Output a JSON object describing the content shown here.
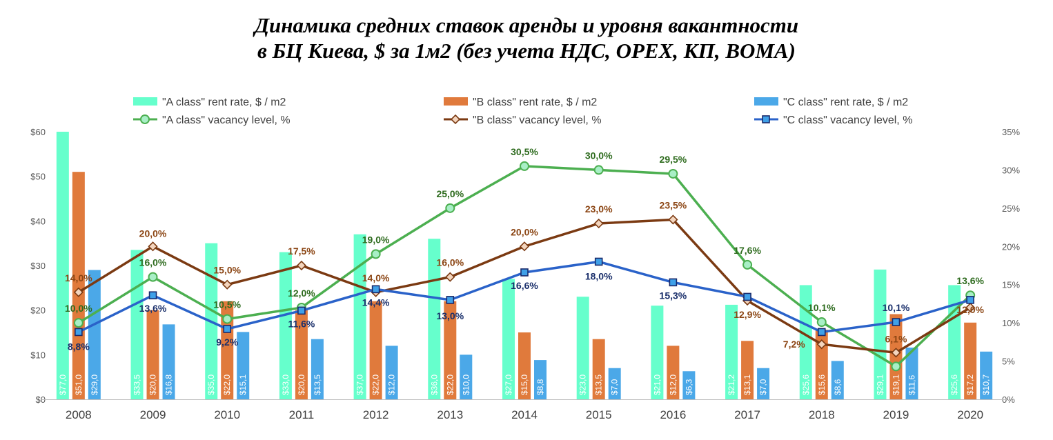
{
  "title": {
    "line1": "Динамика средних ставок аренды и уровня вакантности",
    "line2": "в БЦ Киева, $ за 1м2 (без учета НДС, OPEX, КП, BOMA)"
  },
  "chart_data": {
    "type": "bar",
    "categories": [
      "2008",
      "2009",
      "2010",
      "2011",
      "2012",
      "2013",
      "2014",
      "2015",
      "2016",
      "2017",
      "2018",
      "2019",
      "2020"
    ],
    "y_left": {
      "min": 0,
      "max": 60,
      "step": 10,
      "tick_labels": [
        "$0",
        "$10",
        "$20",
        "$30",
        "$40",
        "$50",
        "$60"
      ]
    },
    "y_right": {
      "min": 0,
      "max": 35,
      "step": 5,
      "tick_labels": [
        "0%",
        "5%",
        "10%",
        "15%",
        "20%",
        "25%",
        "30%",
        "35%"
      ]
    },
    "grid": false,
    "legend_position": "top",
    "bar_series": [
      {
        "name": "\"A class\" rent rate, $ / m2",
        "color": "#66FFCC",
        "values": [
          77.0,
          33.5,
          35.0,
          33.0,
          37.0,
          36.0,
          27.0,
          23.0,
          21.0,
          21.2,
          25.6,
          29.1,
          25.6
        ],
        "labels": [
          "$77,0",
          "$33,5",
          "$35,0",
          "$33,0",
          "$37,0",
          "$36,0",
          "$27,0",
          "$23,0",
          "$21,0",
          "$21,2",
          "$25,6",
          "$29,1",
          "$25,6"
        ]
      },
      {
        "name": "\"B class\" rent rate, $ / m2",
        "color": "#E07A3C",
        "values": [
          51.0,
          20.0,
          22.0,
          20.0,
          22.0,
          22.0,
          15.0,
          13.5,
          12.0,
          13.1,
          15.6,
          19.1,
          17.2
        ],
        "labels": [
          "$51,0",
          "$20,0",
          "$22,0",
          "$20,0",
          "$22,0",
          "$22,0",
          "$15,0",
          "$13,5",
          "$12,0",
          "$13,1",
          "$15,6",
          "$19,1",
          "$17,2"
        ]
      },
      {
        "name": "\"C class\" rent rate, $ / m2",
        "color": "#4BA8E8",
        "values": [
          29.0,
          16.8,
          15.1,
          13.5,
          12.0,
          10.0,
          8.8,
          7.0,
          6.3,
          7.0,
          8.6,
          11.6,
          10.7
        ],
        "labels": [
          "$29,0",
          "$16,8",
          "$15,1",
          "$13,5",
          "$12,0",
          "$10,0",
          "$8,8",
          "$7,0",
          "$6,3",
          "$7,0",
          "$8,6",
          "$11,6",
          "$10,7"
        ]
      }
    ],
    "line_series": [
      {
        "name": "\"A class\" vacancy level, %",
        "color": "#4CAF50",
        "marker": "circle",
        "marker_fill": "#A8EFC6",
        "label_color": "#2E6B1E",
        "values": [
          10.0,
          16.0,
          10.5,
          12.0,
          19.0,
          25.0,
          30.5,
          30.0,
          29.5,
          17.6,
          10.1,
          4.3,
          13.6
        ],
        "labels": [
          "10,0%",
          "16,0%",
          "10,5%",
          "12,0%",
          "19,0%",
          "25,0%",
          "30,5%",
          "30,0%",
          "29,5%",
          "17,6%",
          "10,1%",
          "",
          "13,6%"
        ]
      },
      {
        "name": "\"B class\" vacancy level, %",
        "color": "#7B3A12",
        "marker": "diamond",
        "marker_fill": "#F3D5BE",
        "label_color": "#8B4513",
        "values": [
          14.0,
          20.0,
          15.0,
          17.5,
          14.0,
          16.0,
          20.0,
          23.0,
          23.5,
          12.9,
          7.2,
          6.1,
          12.0
        ],
        "labels": [
          "14,0%",
          "20,0%",
          "15,0%",
          "17,5%",
          "14,0%",
          "16,0%",
          "20,0%",
          "23,0%",
          "23,5%",
          "12,9%",
          "7,2%",
          "6,1%",
          "12,0%"
        ]
      },
      {
        "name": "\"C class\" vacancy level, %",
        "color": "#2A62C9",
        "marker": "square",
        "marker_fill": "#3FA0E8",
        "label_color": "#1A2F6B",
        "values": [
          8.8,
          13.6,
          9.2,
          11.6,
          14.4,
          13.0,
          16.6,
          18.0,
          15.3,
          13.4,
          8.8,
          10.1,
          13.0
        ],
        "labels": [
          "8,8%",
          "13,6%",
          "9,2%",
          "11,6%",
          "14,4%",
          "13,0%",
          "16,6%",
          "18,0%",
          "15,3%",
          "",
          "",
          "10,1%",
          ""
        ]
      }
    ]
  }
}
